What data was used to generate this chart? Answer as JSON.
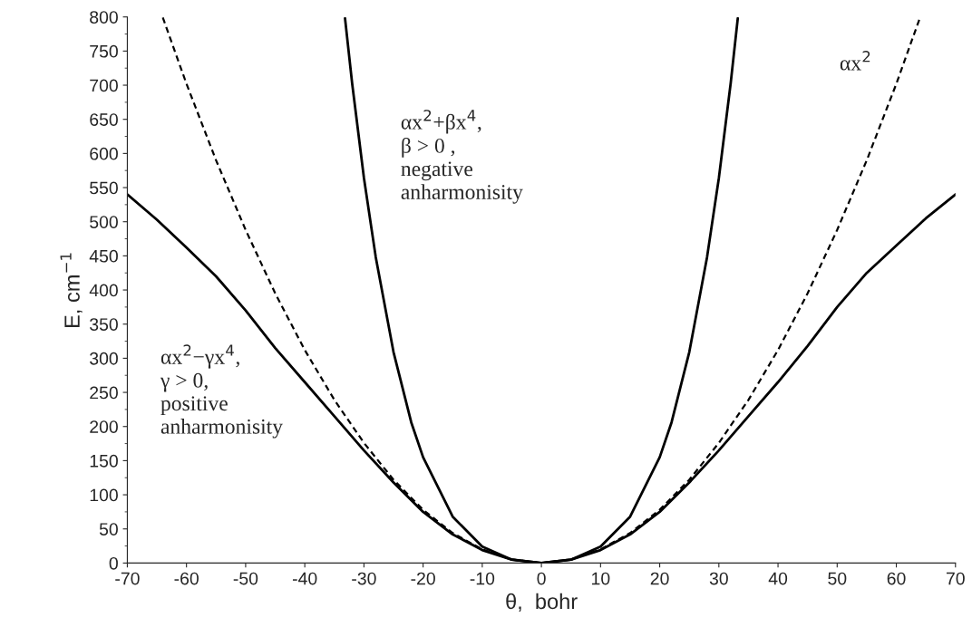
{
  "chart_data": {
    "type": "line",
    "xlabel": "θ,  bohr",
    "ylabel": "E, cm$^{−1}$",
    "xlim": [
      -70,
      70
    ],
    "xticks": [
      -70,
      -60,
      -50,
      -40,
      -30,
      -20,
      -10,
      0,
      10,
      20,
      30,
      40,
      50,
      60,
      70
    ],
    "ylim": [
      0,
      800
    ],
    "yticks": [
      0,
      50,
      100,
      150,
      200,
      250,
      300,
      350,
      400,
      450,
      500,
      550,
      600,
      650,
      700,
      750,
      800
    ],
    "grid": false,
    "legend": false,
    "marker": "none",
    "series": [
      {
        "name": "αx$^{2}$−γx$^{4}$,\nγ > 0,\npositive\nanharmonisity",
        "color": "#000000",
        "line_style": "solid",
        "x": [
          -70,
          -65,
          -60,
          -55,
          -50,
          -45,
          -40,
          -35,
          -30,
          -25,
          -20,
          -15,
          -10,
          -5,
          0,
          5,
          10,
          15,
          20,
          25,
          30,
          35,
          40,
          45,
          50,
          55,
          60,
          65,
          70
        ],
        "values": [
          540,
          503,
          462,
          420,
          370,
          315,
          265,
          215,
          165,
          118,
          75,
          42,
          19,
          5,
          0,
          5,
          19,
          42,
          75,
          118,
          165,
          215,
          265,
          318,
          375,
          425,
          465,
          505,
          540
        ]
      },
      {
        "name": "αx$^{2}$",
        "color": "#000000",
        "line_style": "dashed",
        "x": [
          -64,
          -60,
          -55,
          -50,
          -45,
          -40,
          -35,
          -30,
          -25,
          -20,
          -15,
          -10,
          -5,
          0,
          5,
          10,
          15,
          20,
          25,
          30,
          35,
          40,
          45,
          50,
          55,
          60,
          64
        ],
        "values": [
          799,
          702,
          590,
          488,
          395,
          312,
          239,
          176,
          122,
          78,
          44,
          20,
          5,
          0,
          5,
          20,
          44,
          78,
          122,
          176,
          239,
          312,
          395,
          488,
          590,
          702,
          799
        ]
      },
      {
        "name": "αx$^{2}$+βx$^{4}$,\nβ > 0 ,\nnegative\nanharmonisity",
        "color": "#000000",
        "line_style": "solid",
        "x": [
          -33.2,
          -32,
          -30,
          -28,
          -25,
          -22,
          -20,
          -15,
          -10,
          -5,
          0,
          5,
          10,
          15,
          20,
          22,
          25,
          28,
          30,
          32,
          33.2
        ],
        "values": [
          798,
          703,
          564,
          448,
          309,
          206,
          155,
          68,
          24,
          5,
          0,
          5,
          24,
          68,
          155,
          206,
          309,
          448,
          564,
          703,
          798
        ]
      }
    ]
  }
}
